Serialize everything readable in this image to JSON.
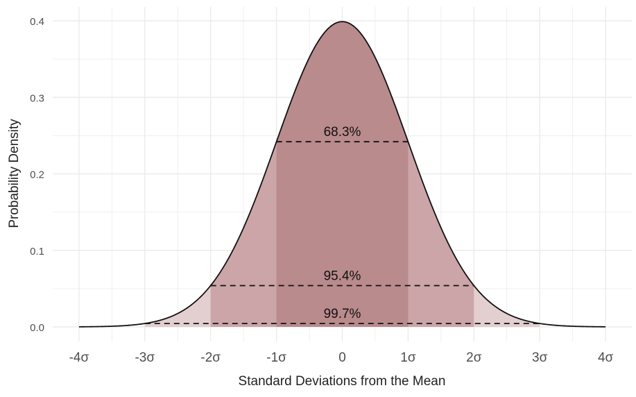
{
  "chart_data": {
    "type": "area",
    "title": "",
    "xlabel": "Standard Deviations from the Mean",
    "ylabel": "Probability Density",
    "xlim": [
      -4,
      4
    ],
    "ylim": [
      0,
      0.4
    ],
    "x_ticks": [
      -4,
      -3,
      -2,
      -1,
      0,
      1,
      2,
      3,
      4
    ],
    "x_tick_labels": [
      "-4σ",
      "-3σ",
      "-2σ",
      "-1σ",
      "0",
      "1σ",
      "2σ",
      "3σ",
      "4σ"
    ],
    "y_ticks": [
      0,
      0.1,
      0.2,
      0.3,
      0.4
    ],
    "y_tick_labels": [
      "0.0",
      "0.1",
      "0.2",
      "0.3",
      "0.4"
    ],
    "grid": true,
    "curve": "standard normal density, mean 0, sd 1",
    "bands": [
      {
        "range": [
          -3,
          3
        ],
        "label": "99.7%",
        "line_y": 0.0044,
        "color": "#e3cfd0"
      },
      {
        "range": [
          -2,
          2
        ],
        "label": "95.4%",
        "line_y": 0.054,
        "color": "#cba5a8"
      },
      {
        "range": [
          -1,
          1
        ],
        "label": "68.3%",
        "line_y": 0.242,
        "color": "#b98b8d"
      }
    ],
    "line_color": "#111111"
  }
}
